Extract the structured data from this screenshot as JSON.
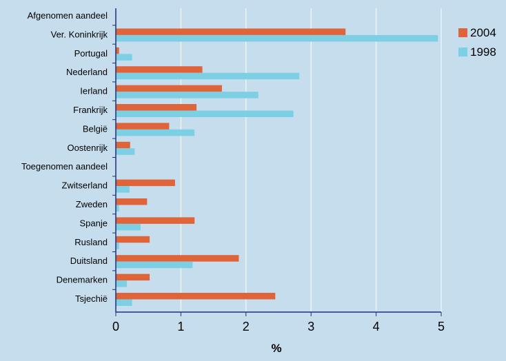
{
  "colors": {
    "background": "#c6dded",
    "series_2004": "#e0643a",
    "series_1998": "#7dcfe3",
    "axis": "#1b2e7a",
    "grid": "#ffffff"
  },
  "chart_data": {
    "type": "bar",
    "orientation": "horizontal",
    "xlabel": "%",
    "ylabel": "",
    "xlim": [
      0,
      5
    ],
    "xticks": [
      0,
      1,
      2,
      3,
      4,
      5
    ],
    "grid": "vertical lines at ticks",
    "legend_position": "top-right",
    "categories": [
      "Afgenomen aandeel",
      "Ver. Koninkrijk",
      "Portugal",
      "Nederland",
      "Ierland",
      "Frankrijk",
      "België",
      "Oostenrijk",
      "Toegenomen aandeel",
      "Zwitserland",
      "Zweden",
      "Spanje",
      "Rusland",
      "Duitsland",
      "Denemarken",
      "Tsjechië"
    ],
    "series": [
      {
        "name": "2004",
        "color": "#e0643a",
        "values": [
          null,
          3.53,
          0.05,
          1.33,
          1.63,
          1.24,
          0.82,
          0.22,
          null,
          0.91,
          0.48,
          1.21,
          0.52,
          1.89,
          0.52,
          2.45
        ]
      },
      {
        "name": "1998",
        "color": "#7dcfe3",
        "values": [
          null,
          4.95,
          0.25,
          2.82,
          2.19,
          2.73,
          1.21,
          0.29,
          null,
          0.21,
          0.05,
          0.38,
          0.05,
          1.18,
          0.17,
          0.25
        ]
      }
    ]
  }
}
